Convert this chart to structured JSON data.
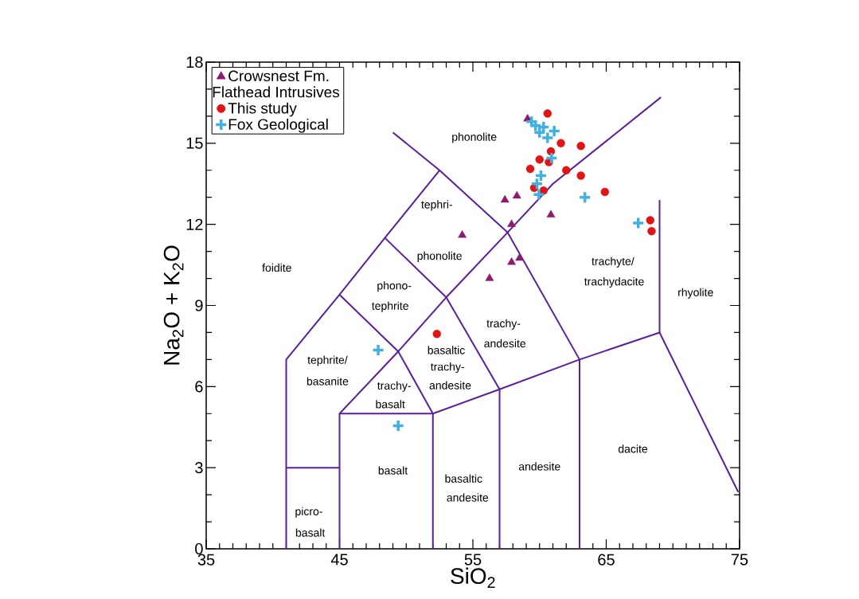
{
  "chart_data": {
    "type": "scatter",
    "xlabel": "SiO$_{2}$",
    "ylabel": "Na$_{2}$O + K$_{2}$O",
    "xlim": [
      35,
      75
    ],
    "ylim": [
      0,
      18
    ],
    "xticks": [
      35,
      45,
      55,
      65,
      75
    ],
    "yticks": [
      0,
      3,
      6,
      9,
      12,
      15,
      18
    ],
    "legend": "top left",
    "legend_title": "Flathead Intrusives",
    "series": [
      {
        "type": "line",
        "color": "#5b1f9e",
        "marker": "none",
        "x": [
          41,
          41,
          45,
          48.4,
          52.5
        ],
        "values": [
          0,
          7,
          9.4,
          11.5,
          14
        ]
      },
      {
        "type": "line",
        "color": "#5b1f9e",
        "marker": "none",
        "x": [
          49,
          52.5,
          57.6,
          63
        ],
        "values": [
          15.4,
          14,
          11.7,
          7
        ]
      },
      {
        "type": "line",
        "color": "#5b1f9e",
        "marker": "none",
        "x": [
          41,
          45
        ],
        "values": [
          3,
          3
        ]
      },
      {
        "type": "line",
        "color": "#5b1f9e",
        "marker": "none",
        "x": [
          45,
          45,
          49.4,
          53,
          57.6,
          61,
          69.1
        ],
        "values": [
          0,
          5,
          7.3,
          9.3,
          11.7,
          13.5,
          16.7
        ]
      },
      {
        "type": "line",
        "color": "#5b1f9e",
        "marker": "none",
        "x": [
          45,
          52,
          52
        ],
        "values": [
          5,
          5,
          0
        ]
      },
      {
        "type": "line",
        "color": "#5b1f9e",
        "marker": "none",
        "x": [
          52,
          57,
          63,
          69,
          74.9
        ],
        "values": [
          5,
          5.9,
          7,
          8,
          2.1
        ]
      },
      {
        "type": "line",
        "color": "#5b1f9e",
        "marker": "none",
        "x": [
          57,
          57
        ],
        "values": [
          0,
          5.9
        ]
      },
      {
        "type": "line",
        "color": "#5b1f9e",
        "marker": "none",
        "x": [
          63,
          63
        ],
        "values": [
          0,
          7
        ]
      },
      {
        "type": "line",
        "color": "#5b1f9e",
        "marker": "none",
        "x": [
          69,
          69
        ],
        "values": [
          8,
          12.9
        ]
      },
      {
        "type": "line",
        "color": "#5b1f9e",
        "marker": "none",
        "x": [
          45,
          49.4,
          52
        ],
        "values": [
          9.4,
          7.3,
          5
        ]
      },
      {
        "type": "line",
        "color": "#5b1f9e",
        "marker": "none",
        "x": [
          48.4,
          53,
          57
        ],
        "values": [
          11.5,
          9.3,
          5.9
        ]
      },
      {
        "name": "Crowsnest Fm.",
        "color": "#8e1c6e",
        "marker": "triangle",
        "x": [
          59.1,
          57.4,
          58.3,
          57.9,
          60.85,
          54.2,
          57.9,
          58.5,
          56.25
        ],
        "values": [
          15.9,
          12.9,
          13.05,
          12.0,
          12.35,
          11.6,
          10.6,
          10.75,
          10.0
        ]
      },
      {
        "name": "This study",
        "color": "#e01414",
        "marker": "circle",
        "x": [
          60.6,
          61.6,
          63.1,
          60.85,
          60.0,
          60.7,
          59.3,
          62.0,
          63.1,
          59.6,
          60.3,
          64.9,
          68.3,
          68.4,
          52.3
        ],
        "values": [
          16.1,
          15.0,
          14.9,
          14.7,
          14.4,
          14.3,
          14.05,
          14.0,
          13.8,
          13.35,
          13.25,
          13.2,
          12.15,
          11.75,
          7.95
        ]
      },
      {
        "name": "Fox Geological",
        "color": "#42b0e0",
        "marker": "cross",
        "x": [
          59.4,
          59.7,
          60.3,
          61.1,
          60.0,
          60.6,
          60.9,
          60.1,
          59.8,
          59.95,
          63.4,
          67.4,
          47.9,
          49.4
        ],
        "values": [
          15.8,
          15.65,
          15.6,
          15.45,
          15.4,
          15.2,
          14.45,
          13.8,
          13.5,
          13.1,
          13.0,
          12.05,
          7.35,
          4.55
        ]
      }
    ],
    "annotations": [
      "phonolite",
      "tephri-",
      "phonolite",
      "foidite",
      "phono-",
      "tephrite",
      "tephrite/",
      "basanite",
      "trachy-",
      "basalt",
      "basaltic",
      "trachy-",
      "andesite",
      "trachy-",
      "andesite",
      "trachyte/",
      "trachydacite",
      "rhyolite",
      "dacite",
      "andesite",
      "basaltic",
      "andesite",
      "basalt",
      "picro-",
      "basalt"
    ]
  }
}
